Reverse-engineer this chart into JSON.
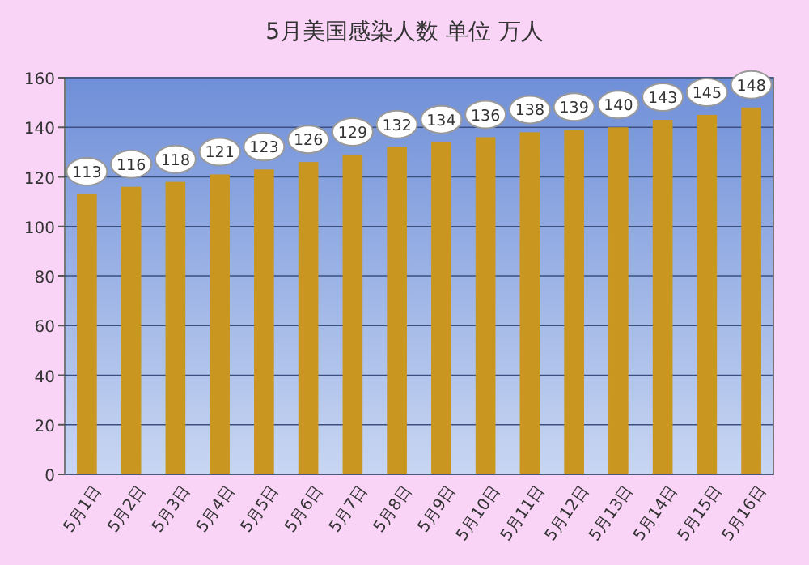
{
  "chart_data": {
    "type": "bar",
    "title": "5月美国感染人数 单位 万人",
    "categories": [
      "5月1日",
      "5月2日",
      "5月3日",
      "5月4日",
      "5月5日",
      "5月6日",
      "5月7日",
      "5月8日",
      "5月9日",
      "5月10日",
      "5月11日",
      "5月12日",
      "5月13日",
      "5月14日",
      "5月15日",
      "5月16日"
    ],
    "values": [
      113,
      116,
      118,
      121,
      123,
      126,
      129,
      132,
      134,
      136,
      138,
      139,
      140,
      143,
      145,
      148
    ],
    "color": "#c9961f",
    "ylim": [
      0,
      160
    ],
    "yticks": [
      0,
      20,
      40,
      60,
      80,
      100,
      120,
      140,
      160
    ],
    "grid": "y",
    "data_labels": true
  }
}
